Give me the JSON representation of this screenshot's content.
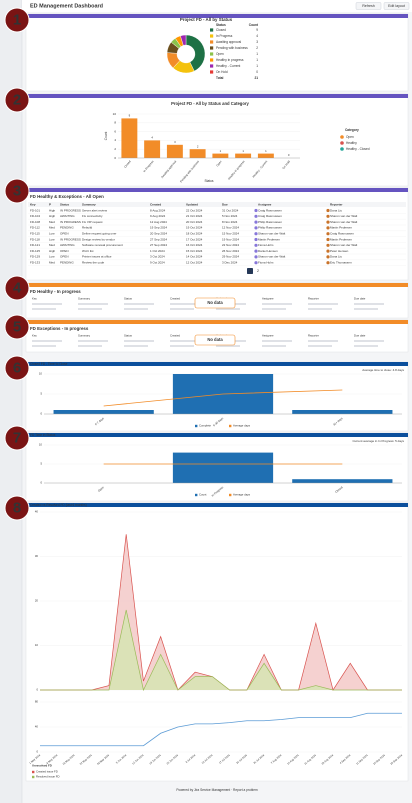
{
  "header": {
    "title": "ED Management Dashboard",
    "buttons": [
      "Refresh",
      "Edit layout"
    ]
  },
  "annotations": [
    "1",
    "2",
    "3",
    "4",
    "5",
    "6",
    "7",
    "8"
  ],
  "donut": {
    "title": "Project FD - All by Status",
    "columns": [
      "Status",
      "Count"
    ],
    "series": [
      {
        "name": "Closed",
        "color": "#1e7145",
        "value": 9
      },
      {
        "name": "In Progress",
        "color": "#f4c20d",
        "value": 4
      },
      {
        "name": "Awaiting approval",
        "color": "#f28c28",
        "value": 3
      },
      {
        "name": "Pending with business",
        "color": "#6b4f1d",
        "value": 2
      },
      {
        "name": "Open",
        "color": "#8bc34a",
        "value": 1
      },
      {
        "name": "Healthy in progress",
        "color": "#ff9800",
        "value": 1
      },
      {
        "name": "Healthy - Current",
        "color": "#9c27b0",
        "value": 1
      },
      {
        "name": "On Hold",
        "color": "#e53935",
        "value": 0
      }
    ],
    "total": {
      "label": "Total",
      "value": 21
    }
  },
  "bars": {
    "title": "Project FD - All by Status and Category",
    "x_label": "Status",
    "y_label": "Count",
    "categories": [
      "Closed",
      "In Progress",
      "Awaiting approval",
      "Pending with business",
      "Open",
      "Healthy in progress",
      "Healthy - Current",
      "On Hold"
    ],
    "values": [
      9,
      4,
      3,
      2,
      1,
      1,
      1,
      0
    ],
    "color": "#f28c28",
    "ylim": [
      0,
      10
    ],
    "yticks": [
      0,
      2,
      4,
      6,
      8,
      10
    ],
    "legend_title": "Category",
    "legend": [
      {
        "name": "Open",
        "color": "#f28c28"
      },
      {
        "name": "Healthy",
        "color": "#d9534f"
      },
      {
        "name": "Healthy - Closed",
        "color": "#26a69a"
      }
    ]
  },
  "table": {
    "title": "FD Healthy & Exceptions - All Open",
    "columns": [
      "Key",
      "P",
      "Status",
      "Summary",
      "Created",
      "Updated",
      "Due",
      "Assignee",
      "Reporter"
    ],
    "rows": [
      [
        "FD-101",
        "High",
        "IN PROGRESS",
        "Server alert review",
        "8 Aug 2024",
        "22 Oct 2024",
        "31 Oct 2024",
        "Craig Rasmussen",
        "Dana Liu"
      ],
      [
        "FD-104",
        "High",
        "AWAITING",
        "Fix connectivity",
        "9 Aug 2024",
        "21 Oct 2024",
        "5 Nov 2024",
        "Craig Rasmussen",
        "Sharon van der Walt"
      ],
      [
        "FD-108",
        "Med",
        "IN PROGRESS",
        "Fix VIP request",
        "12 Aug 2024",
        "20 Oct 2024",
        "8 Nov 2024",
        "Philip Rasmussen",
        "Sharon van der Walt"
      ],
      [
        "FD-112",
        "Med",
        "PENDING",
        "Rebuild",
        "19 Sep 2024",
        "19 Oct 2024",
        "12 Nov 2024",
        "Philip Rasmussen",
        "Martin Pedersen"
      ],
      [
        "FD-115",
        "Low",
        "OPEN",
        "Define request going over",
        "20 Sep 2024",
        "18 Oct 2024",
        "15 Nov 2024",
        "Sharon van der Walt",
        "Craig Rasmussen"
      ],
      [
        "FD-118",
        "Low",
        "IN PROGRESS",
        "Design review by vendor",
        "27 Sep 2024",
        "17 Oct 2024",
        "19 Nov 2024",
        "Martin Pedersen",
        "Martin Pedersen"
      ],
      [
        "FD-121",
        "Med",
        "AWAITING",
        "Software renewal procurement",
        "27 Sep 2024",
        "16 Oct 2024",
        "22 Nov 2024",
        "Fiona Holm",
        "Sharon van der Walt"
      ],
      [
        "FD-125",
        "High",
        "OPEN",
        "Wi-Fi list",
        "1 Oct 2024",
        "15 Oct 2024",
        "26 Nov 2024",
        "Daniel Hensen",
        "Peter Hensen"
      ],
      [
        "FD-129",
        "Low",
        "OPEN",
        "Printer issues at office",
        "3 Oct 2024",
        "14 Oct 2024",
        "29 Nov 2024",
        "Sharon van der Walt",
        "Dana Liu"
      ],
      [
        "FD-133",
        "Med",
        "PENDING",
        "Review the code",
        "9 Oct 2024",
        "12 Oct 2024",
        "3 Dec 2024",
        "Fiona Holm",
        "Eric Thomassen"
      ]
    ],
    "pages": [
      "1",
      "2"
    ]
  },
  "empty_panels": [
    {
      "title": "FD Healthy - In progress",
      "columns": [
        "Key",
        "Summary",
        "Status",
        "Created",
        "Updated",
        "Assignee",
        "Reporter",
        "Due date"
      ],
      "message": "No data"
    },
    {
      "title": "FD Exceptions - In progress",
      "columns": [
        "Key",
        "Summary",
        "Status",
        "Created",
        "Updated",
        "Assignee",
        "Reporter",
        "Due date"
      ],
      "message": "No data"
    }
  ],
  "mixed_charts": [
    {
      "title": "Closed FD - Time to Close",
      "note": "Average time to close: 4.8 days",
      "categories": [
        "0-7 days",
        "8-30 days",
        "31+ days"
      ],
      "series": [
        {
          "name": "Complete",
          "type": "bar",
          "color": "#1f6fb2",
          "values": [
            1,
            10,
            1
          ]
        },
        {
          "name": "Average days",
          "type": "line",
          "color": "#f28c28",
          "values": [
            2,
            5,
            6
          ]
        }
      ],
      "ylim": [
        0,
        10
      ],
      "yticks": [
        0,
        5,
        10
      ]
    },
    {
      "title": "FD Time in Status",
      "note": "Current average in In Progress: 5 days",
      "categories": [
        "Open",
        "In Progress",
        "Closed"
      ],
      "series": [
        {
          "name": "Count",
          "type": "bar",
          "color": "#1f6fb2",
          "values": [
            0,
            8,
            1
          ]
        },
        {
          "name": "Average days",
          "type": "line",
          "color": "#f28c28",
          "values": [
            5,
            5,
            5
          ]
        }
      ],
      "ylim": [
        0,
        10
      ],
      "yticks": [
        0,
        5,
        10
      ]
    }
  ],
  "trend": {
    "title": "Created vs Resolved FD (last 6 months)",
    "categories": [
      "1 May 2024",
      "8 May 2024",
      "15 May 2024",
      "22 May 2024",
      "29 May 2024",
      "5 Jun 2024",
      "12 Jun 2024",
      "19 Jun 2024",
      "26 Jun 2024",
      "3 Jul 2024",
      "10 Jul 2024",
      "17 Jul 2024",
      "24 Jul 2024",
      "31 Jul 2024",
      "7 Aug 2024",
      "14 Aug 2024",
      "21 Aug 2024",
      "28 Aug 2024",
      "4 Sep 2024",
      "11 Sep 2024",
      "18 Sep 2024",
      "25 Sep 2024"
    ],
    "series": [
      {
        "name": "Created issue FD",
        "color": "#d9534f",
        "fill": "#f3c6c4",
        "values": [
          0,
          0,
          0,
          0,
          1,
          35,
          2,
          12,
          0,
          4,
          3,
          0,
          0,
          8,
          0,
          0,
          15,
          0,
          6,
          0,
          0,
          0
        ]
      },
      {
        "name": "Resolved issue FD",
        "color": "#9bbb59",
        "fill": "#d5e6b0",
        "values": [
          0,
          0,
          0,
          0,
          0,
          18,
          0,
          8,
          0,
          3,
          3,
          0,
          0,
          6,
          0,
          0,
          1,
          0,
          0,
          0,
          0,
          0
        ]
      }
    ],
    "ylim": [
      0,
      40
    ],
    "yticks": [
      0,
      10,
      20,
      30,
      40
    ],
    "cumulative": {
      "name": "Unresolved FD",
      "color": "#5b9bd5",
      "values": [
        10,
        10,
        10,
        10,
        10,
        10,
        10,
        30,
        40,
        45,
        45,
        47,
        50,
        50,
        52,
        55,
        55,
        55,
        55,
        62,
        62,
        62
      ],
      "ylim": [
        0,
        80
      ],
      "yticks": [
        0,
        40,
        80
      ]
    }
  },
  "footer": "Powered by Jira Service Management · Report a problem"
}
